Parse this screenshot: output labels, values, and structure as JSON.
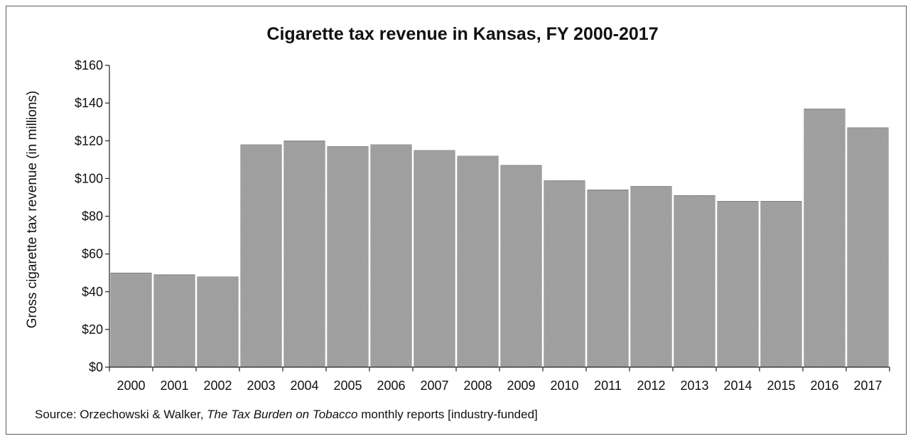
{
  "chart_data": {
    "type": "bar",
    "title": "Cigarette tax revenue in Kansas, FY 2000-2017",
    "xlabel": "",
    "ylabel": "Gross cigarette tax revenue (in millions)",
    "ylim": [
      0,
      160
    ],
    "yticks": [
      0,
      20,
      40,
      60,
      80,
      100,
      120,
      140,
      160
    ],
    "ytick_labels": [
      "$0",
      "$20",
      "$40",
      "$60",
      "$80",
      "$100",
      "$120",
      "$140",
      "$160"
    ],
    "categories": [
      "2000",
      "2001",
      "2002",
      "2003",
      "2004",
      "2005",
      "2006",
      "2007",
      "2008",
      "2009",
      "2010",
      "2011",
      "2012",
      "2013",
      "2014",
      "2015",
      "2016",
      "2017"
    ],
    "values": [
      50,
      49,
      48,
      118,
      120,
      117,
      118,
      115,
      112,
      107,
      99,
      94,
      96,
      91,
      88,
      88,
      137,
      127
    ],
    "grid": false,
    "legend": "none",
    "bar_color": "#a6a6a6"
  },
  "source": {
    "prefix": "Source: Orzechowski & Walker, ",
    "title_italic": "The Tax Burden on Tobacco",
    "suffix": " monthly reports [industry-funded]"
  }
}
